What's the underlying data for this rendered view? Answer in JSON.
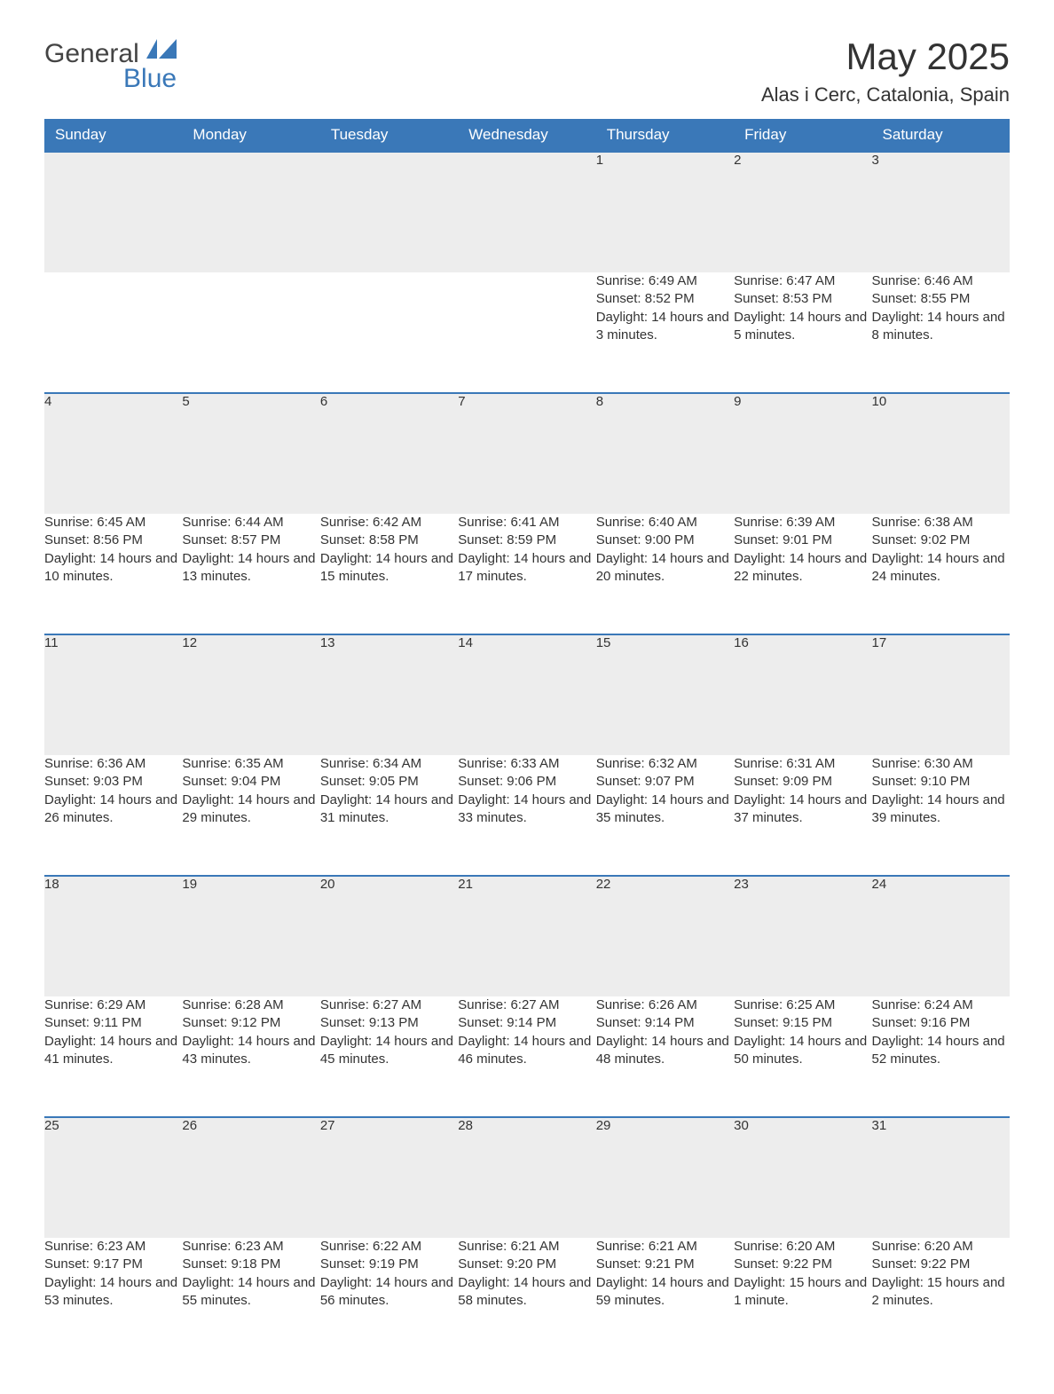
{
  "logo": {
    "text1": "General",
    "text2": "Blue",
    "tri_color": "#3a78b8"
  },
  "header": {
    "title": "May 2025",
    "subtitle": "Alas i Cerc, Catalonia, Spain"
  },
  "calendar": {
    "header_bg": "#3a78b8",
    "header_fg": "#ffffff",
    "daynum_bg": "#ededed",
    "daynum_border": "#3a78b8",
    "text_color": "#333333",
    "weekdays": [
      "Sunday",
      "Monday",
      "Tuesday",
      "Wednesday",
      "Thursday",
      "Friday",
      "Saturday"
    ],
    "weeks": [
      [
        null,
        null,
        null,
        null,
        {
          "n": "1",
          "sunrise": "6:49 AM",
          "sunset": "8:52 PM",
          "daylight": "14 hours and 3 minutes."
        },
        {
          "n": "2",
          "sunrise": "6:47 AM",
          "sunset": "8:53 PM",
          "daylight": "14 hours and 5 minutes."
        },
        {
          "n": "3",
          "sunrise": "6:46 AM",
          "sunset": "8:55 PM",
          "daylight": "14 hours and 8 minutes."
        }
      ],
      [
        {
          "n": "4",
          "sunrise": "6:45 AM",
          "sunset": "8:56 PM",
          "daylight": "14 hours and 10 minutes."
        },
        {
          "n": "5",
          "sunrise": "6:44 AM",
          "sunset": "8:57 PM",
          "daylight": "14 hours and 13 minutes."
        },
        {
          "n": "6",
          "sunrise": "6:42 AM",
          "sunset": "8:58 PM",
          "daylight": "14 hours and 15 minutes."
        },
        {
          "n": "7",
          "sunrise": "6:41 AM",
          "sunset": "8:59 PM",
          "daylight": "14 hours and 17 minutes."
        },
        {
          "n": "8",
          "sunrise": "6:40 AM",
          "sunset": "9:00 PM",
          "daylight": "14 hours and 20 minutes."
        },
        {
          "n": "9",
          "sunrise": "6:39 AM",
          "sunset": "9:01 PM",
          "daylight": "14 hours and 22 minutes."
        },
        {
          "n": "10",
          "sunrise": "6:38 AM",
          "sunset": "9:02 PM",
          "daylight": "14 hours and 24 minutes."
        }
      ],
      [
        {
          "n": "11",
          "sunrise": "6:36 AM",
          "sunset": "9:03 PM",
          "daylight": "14 hours and 26 minutes."
        },
        {
          "n": "12",
          "sunrise": "6:35 AM",
          "sunset": "9:04 PM",
          "daylight": "14 hours and 29 minutes."
        },
        {
          "n": "13",
          "sunrise": "6:34 AM",
          "sunset": "9:05 PM",
          "daylight": "14 hours and 31 minutes."
        },
        {
          "n": "14",
          "sunrise": "6:33 AM",
          "sunset": "9:06 PM",
          "daylight": "14 hours and 33 minutes."
        },
        {
          "n": "15",
          "sunrise": "6:32 AM",
          "sunset": "9:07 PM",
          "daylight": "14 hours and 35 minutes."
        },
        {
          "n": "16",
          "sunrise": "6:31 AM",
          "sunset": "9:09 PM",
          "daylight": "14 hours and 37 minutes."
        },
        {
          "n": "17",
          "sunrise": "6:30 AM",
          "sunset": "9:10 PM",
          "daylight": "14 hours and 39 minutes."
        }
      ],
      [
        {
          "n": "18",
          "sunrise": "6:29 AM",
          "sunset": "9:11 PM",
          "daylight": "14 hours and 41 minutes."
        },
        {
          "n": "19",
          "sunrise": "6:28 AM",
          "sunset": "9:12 PM",
          "daylight": "14 hours and 43 minutes."
        },
        {
          "n": "20",
          "sunrise": "6:27 AM",
          "sunset": "9:13 PM",
          "daylight": "14 hours and 45 minutes."
        },
        {
          "n": "21",
          "sunrise": "6:27 AM",
          "sunset": "9:14 PM",
          "daylight": "14 hours and 46 minutes."
        },
        {
          "n": "22",
          "sunrise": "6:26 AM",
          "sunset": "9:14 PM",
          "daylight": "14 hours and 48 minutes."
        },
        {
          "n": "23",
          "sunrise": "6:25 AM",
          "sunset": "9:15 PM",
          "daylight": "14 hours and 50 minutes."
        },
        {
          "n": "24",
          "sunrise": "6:24 AM",
          "sunset": "9:16 PM",
          "daylight": "14 hours and 52 minutes."
        }
      ],
      [
        {
          "n": "25",
          "sunrise": "6:23 AM",
          "sunset": "9:17 PM",
          "daylight": "14 hours and 53 minutes."
        },
        {
          "n": "26",
          "sunrise": "6:23 AM",
          "sunset": "9:18 PM",
          "daylight": "14 hours and 55 minutes."
        },
        {
          "n": "27",
          "sunrise": "6:22 AM",
          "sunset": "9:19 PM",
          "daylight": "14 hours and 56 minutes."
        },
        {
          "n": "28",
          "sunrise": "6:21 AM",
          "sunset": "9:20 PM",
          "daylight": "14 hours and 58 minutes."
        },
        {
          "n": "29",
          "sunrise": "6:21 AM",
          "sunset": "9:21 PM",
          "daylight": "14 hours and 59 minutes."
        },
        {
          "n": "30",
          "sunrise": "6:20 AM",
          "sunset": "9:22 PM",
          "daylight": "15 hours and 1 minute."
        },
        {
          "n": "31",
          "sunrise": "6:20 AM",
          "sunset": "9:22 PM",
          "daylight": "15 hours and 2 minutes."
        }
      ]
    ],
    "labels": {
      "sunrise": "Sunrise: ",
      "sunset": "Sunset: ",
      "daylight": "Daylight: "
    }
  }
}
